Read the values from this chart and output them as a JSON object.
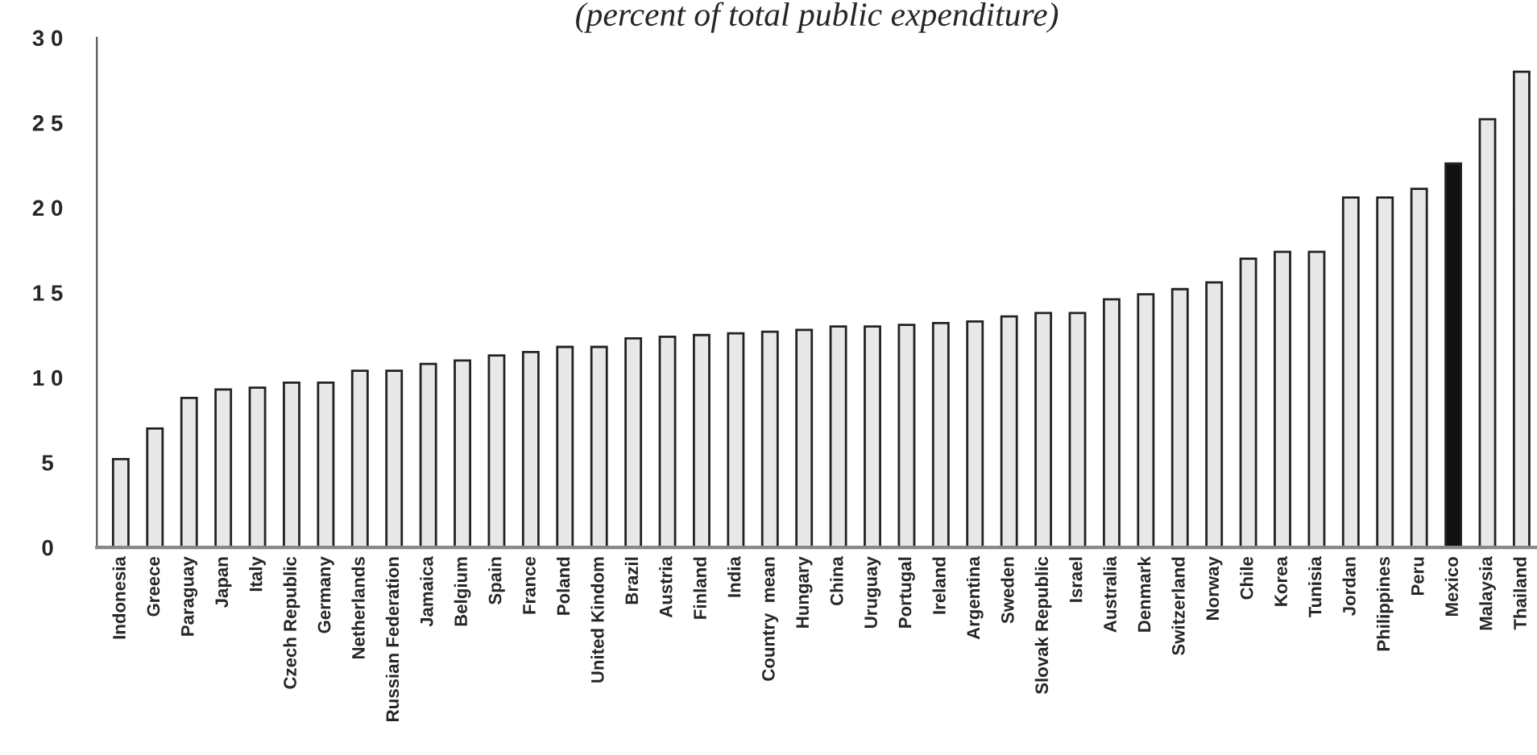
{
  "chart_data": {
    "type": "bar",
    "title": "(percent of total public expenditure)",
    "categories": [
      "Indonesia",
      "Greece",
      "Paraguay",
      "Japan",
      "Italy",
      "Czech Republic",
      "Germany",
      "Netherlands",
      "Russian Federation",
      "Jamaica",
      "Belgium",
      "Spain",
      "France",
      "Poland",
      "United Kindom",
      "Brazil",
      "Austria",
      "Finland",
      "India",
      "Country  mean",
      "Hungary",
      "China",
      "Uruguay",
      "Portugal",
      "Ireland",
      "Argentina",
      "Sweden",
      "Slovak Republic",
      "Israel",
      "Australia",
      "Denmark",
      "Switzerland",
      "Norway",
      "Chile",
      "Korea",
      "Tunisia",
      "Jordan",
      "Philippines",
      "Peru",
      "Mexico",
      "Malaysia",
      "Thailand"
    ],
    "values": [
      5.2,
      7.0,
      8.8,
      9.3,
      9.4,
      9.7,
      9.7,
      10.4,
      10.4,
      10.8,
      11.0,
      11.3,
      11.5,
      11.8,
      11.8,
      12.3,
      12.4,
      12.5,
      12.6,
      12.7,
      12.8,
      13.0,
      13.0,
      13.1,
      13.2,
      13.3,
      13.6,
      13.8,
      13.8,
      14.6,
      14.9,
      15.2,
      15.6,
      17.0,
      17.4,
      17.4,
      20.6,
      20.6,
      21.1,
      22.6,
      25.2,
      28.0
    ],
    "colors": [
      "#e8e8e8",
      "#e8e8e8",
      "#e8e8e8",
      "#e8e8e8",
      "#e8e8e8",
      "#e8e8e8",
      "#e8e8e8",
      "#e8e8e8",
      "#e8e8e8",
      "#e8e8e8",
      "#e8e8e8",
      "#e8e8e8",
      "#e8e8e8",
      "#e8e8e8",
      "#e8e8e8",
      "#e8e8e8",
      "#e8e8e8",
      "#e8e8e8",
      "#e8e8e8",
      "#e8e8e8",
      "#e8e8e8",
      "#e8e8e8",
      "#e8e8e8",
      "#e8e8e8",
      "#e8e8e8",
      "#e8e8e8",
      "#e8e8e8",
      "#e8e8e8",
      "#e8e8e8",
      "#e8e8e8",
      "#e8e8e8",
      "#e8e8e8",
      "#e8e8e8",
      "#e8e8e8",
      "#e8e8e8",
      "#e8e8e8",
      "#e8e8e8",
      "#e8e8e8",
      "#e8e8e8",
      "#111111",
      "#e8e8e8",
      "#e8e8e8"
    ],
    "ylim": [
      0,
      30
    ],
    "yticks": [
      0,
      5,
      {
        "value": 10,
        "label": "1 0"
      },
      {
        "value": 15,
        "label": "1 5"
      },
      {
        "value": 20,
        "label": "2 0"
      },
      {
        "value": 25,
        "label": "2 5"
      },
      {
        "value": 30,
        "label": "3 0"
      }
    ],
    "grid": false,
    "legend": false
  }
}
